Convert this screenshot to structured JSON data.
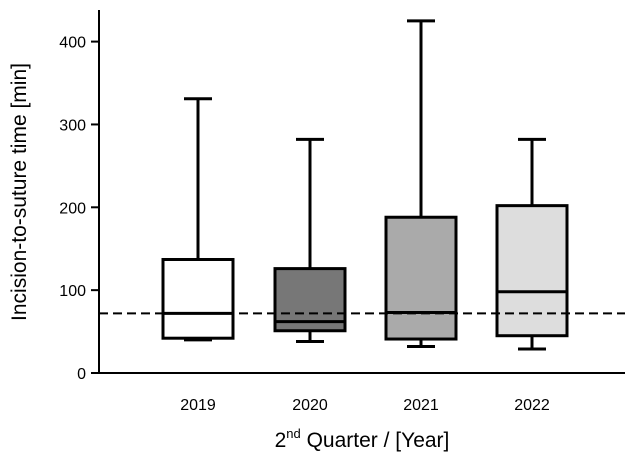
{
  "chart_data": {
    "type": "box",
    "categories": [
      "2019",
      "2020",
      "2021",
      "2022"
    ],
    "boxes": [
      {
        "category": "2019",
        "min": 40,
        "q1": 42,
        "median": 72,
        "q3": 137,
        "max": 331,
        "fill": "#ffffff"
      },
      {
        "category": "2020",
        "min": 38,
        "q1": 51,
        "median": 62,
        "q3": 126,
        "max": 282,
        "fill": "#777777"
      },
      {
        "category": "2021",
        "min": 32,
        "q1": 41,
        "median": 73,
        "q3": 188,
        "max": 425,
        "fill": "#aaaaaa"
      },
      {
        "category": "2022",
        "min": 29,
        "q1": 45,
        "median": 98,
        "q3": 202,
        "max": 282,
        "fill": "#dddddd"
      }
    ],
    "reference_line": {
      "y": 72,
      "style": "dashed"
    },
    "ylim": [
      0,
      440
    ],
    "yticks": [
      "0",
      "100",
      "200",
      "300",
      "400"
    ],
    "xlabel": {
      "base": "2",
      "superscript": "nd",
      "rest": " Quarter / [Year]"
    },
    "ylabel": "Incision-to-suture time [min]",
    "grid": false
  }
}
